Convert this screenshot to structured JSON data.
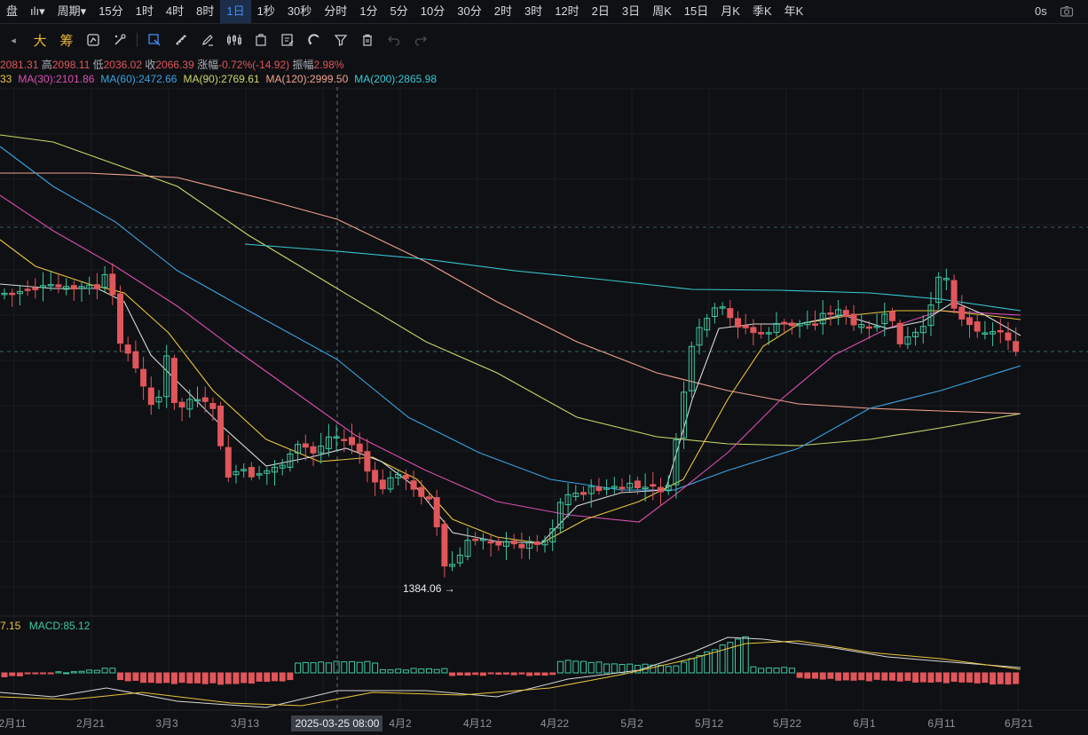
{
  "topbar": {
    "items": [
      {
        "label": "盘",
        "active": false
      },
      {
        "label": "ılı▾",
        "active": false
      },
      {
        "label": "周期▾",
        "active": false
      },
      {
        "label": "15分",
        "active": false
      },
      {
        "label": "1时",
        "active": false
      },
      {
        "label": "4时",
        "active": false
      },
      {
        "label": "8时",
        "active": false
      },
      {
        "label": "1日",
        "active": true
      },
      {
        "label": "1秒",
        "active": false
      },
      {
        "label": "30秒",
        "active": false
      },
      {
        "label": "分时",
        "active": false
      },
      {
        "label": "1分",
        "active": false
      },
      {
        "label": "5分",
        "active": false
      },
      {
        "label": "10分",
        "active": false
      },
      {
        "label": "30分",
        "active": false
      },
      {
        "label": "2时",
        "active": false
      },
      {
        "label": "3时",
        "active": false
      },
      {
        "label": "12时",
        "active": false
      },
      {
        "label": "2日",
        "active": false
      },
      {
        "label": "3日",
        "active": false
      },
      {
        "label": "周K",
        "active": false
      },
      {
        "label": "15日",
        "active": false
      },
      {
        "label": "月K",
        "active": false
      },
      {
        "label": "季K",
        "active": false
      },
      {
        "label": "年K",
        "active": false
      }
    ],
    "countdown": "0s"
  },
  "toolbar": {
    "da": "大",
    "chou": "筹"
  },
  "ohlc": {
    "open": "2081.31",
    "high_label": "高",
    "high": "2098.11",
    "low_label": "低",
    "low": "2036.02",
    "close_label": "收",
    "close": "2066.39",
    "change_label": "涨幅",
    "change": "-0.72%(-14.92)",
    "amp_label": "振幅",
    "amp": "2.98%"
  },
  "ma": [
    {
      "label": "33",
      "color": "#e7c53c"
    },
    {
      "label": "MA(30):2101.86",
      "color": "#d94fb0"
    },
    {
      "label": "MA(60):2472.66",
      "color": "#3aa2e0"
    },
    {
      "label": "MA(90):2769.61",
      "color": "#c8d96a"
    },
    {
      "label": "MA(120):2999.50",
      "color": "#f0a090"
    },
    {
      "label": "MA(200):2865.98",
      "color": "#37c8d4"
    }
  ],
  "macd": {
    "left_value": "7.15",
    "label": "MACD:85.12",
    "left_color": "#e7c53c",
    "label_color": "#3fc7a0"
  },
  "low_marker": "1384.06 →",
  "xaxis": {
    "ticks": [
      "2月11",
      "2月21",
      "3月3",
      "3月13",
      "4月2",
      "4月12",
      "4月22",
      "5月2",
      "5月12",
      "5月22",
      "6月1",
      "6月11",
      "6月21"
    ],
    "crosshair_label": "2025-03-25 08:00"
  },
  "colors": {
    "up": "#3fc7a0",
    "down": "#e0565b",
    "ma5": "#d8d8d8",
    "ma10": "#e7c53c",
    "ma30": "#d94fb0",
    "ma60": "#3aa2e0",
    "ma90": "#c8d96a",
    "ma120": "#f0a090",
    "ma200": "#37c8d4"
  }
}
